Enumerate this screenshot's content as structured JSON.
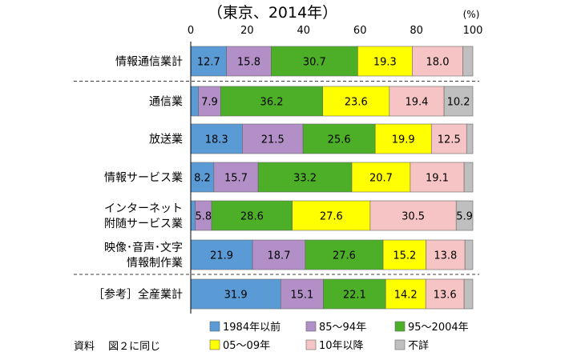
{
  "chart_data": {
    "type": "bar",
    "stacked": true,
    "orientation": "horizontal",
    "title": "（東京、2014年）",
    "unit_label": "(%)",
    "xlim": [
      0,
      100
    ],
    "x_ticks": [
      "0",
      "20",
      "40",
      "60",
      "80",
      "100"
    ],
    "grid": false,
    "legend_position": "bottom",
    "categories": [
      {
        "lines": [
          "情報通信業計"
        ]
      },
      {
        "lines": [
          "通信業"
        ]
      },
      {
        "lines": [
          "放送業"
        ]
      },
      {
        "lines": [
          "情報サービス業"
        ]
      },
      {
        "lines": [
          "インターネット",
          "附随サービス業"
        ]
      },
      {
        "lines": [
          "映像･音声･文字",
          "情報制作業"
        ]
      },
      {
        "lines": [
          "［参考］全産業計"
        ]
      }
    ],
    "series": [
      {
        "name": "1984年以前",
        "color": "#5b9bd5",
        "values": [
          12.7,
          2.7,
          18.3,
          8.2,
          1.6,
          21.9,
          31.9
        ],
        "labels": [
          "12.7",
          "",
          "18.3",
          "8.2",
          "",
          "21.9",
          "31.9"
        ]
      },
      {
        "name": "85～94年",
        "color": "#b28fc6",
        "values": [
          15.8,
          7.9,
          21.5,
          15.7,
          5.8,
          18.7,
          15.1
        ],
        "labels": [
          "15.8",
          "7.9",
          "21.5",
          "15.7",
          "5.8",
          "18.7",
          "15.1"
        ]
      },
      {
        "name": "95～2004年",
        "color": "#4caf27",
        "values": [
          30.7,
          36.2,
          25.6,
          33.2,
          28.6,
          27.6,
          22.1
        ],
        "labels": [
          "30.7",
          "36.2",
          "25.6",
          "33.2",
          "28.6",
          "27.6",
          "22.1"
        ]
      },
      {
        "name": "05～09年",
        "color": "#ffff00",
        "values": [
          19.3,
          23.6,
          19.9,
          20.7,
          27.6,
          15.2,
          14.2
        ],
        "labels": [
          "19.3",
          "23.6",
          "19.9",
          "20.7",
          "27.6",
          "15.2",
          "14.2"
        ]
      },
      {
        "name": "10年以降",
        "color": "#f6c4c4",
        "values": [
          18.0,
          19.4,
          12.5,
          19.1,
          30.5,
          13.8,
          13.6
        ],
        "labels": [
          "18.0",
          "19.4",
          "12.5",
          "19.1",
          "30.5",
          "13.8",
          "13.6"
        ]
      },
      {
        "name": "不詳",
        "color": "#bfbfbf",
        "values": [
          3.5,
          10.2,
          2.2,
          3.1,
          5.9,
          2.8,
          3.1
        ],
        "labels": [
          "",
          "10.2",
          "",
          "",
          "5.9",
          "",
          ""
        ]
      }
    ],
    "separators_after": [
      0,
      5
    ],
    "source_note": "資料　 図２に同じ"
  }
}
